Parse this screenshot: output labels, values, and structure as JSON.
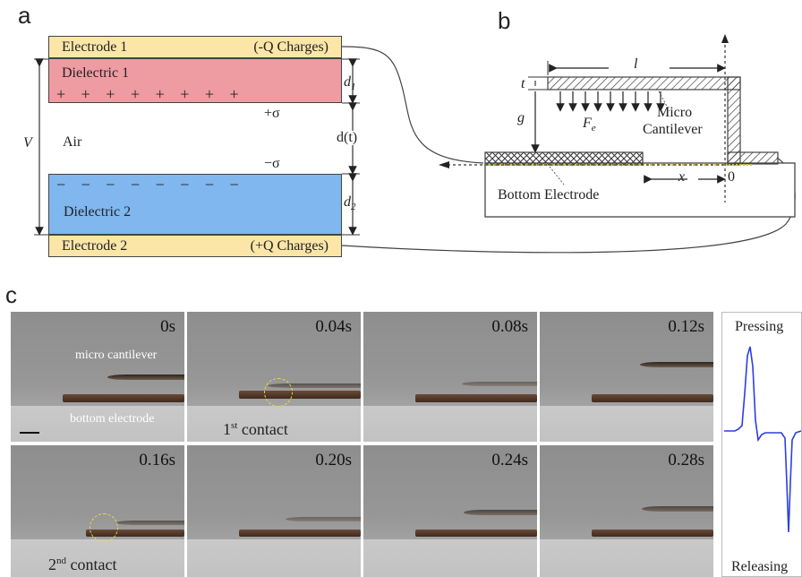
{
  "panel_a": {
    "letter": "a",
    "electrode1": "Electrode 1",
    "charge1": "(-Q Charges)",
    "dielectric1": "Dielectric 1",
    "plus_signs": "+   +   +   +   +   +   +   +",
    "sigma_plus": "+σ",
    "air": "Air",
    "V": "V",
    "sigma_minus": "−σ",
    "minus_signs": "−   −   −   −   −   −   −   −",
    "dielectric2": "Dielectric 2",
    "electrode2": "Electrode 2",
    "charge2": "(+Q Charges)",
    "d1": "d",
    "d1_sub": "1",
    "dt": "d(t)",
    "d2": "d",
    "d2_sub": "2"
  },
  "panel_b": {
    "letter": "b",
    "l": "l",
    "t": "t",
    "g": "g",
    "Fe": "F",
    "Fe_sub": "e",
    "micro": "Micro",
    "cantilever": "Cantilever",
    "bottom_electrode": "Bottom Electrode",
    "x": "x",
    "zero": "0"
  },
  "panel_c": {
    "letter": "c",
    "frames": [
      {
        "time": "0s"
      },
      {
        "time": "0.04s"
      },
      {
        "time": "0.08s"
      },
      {
        "time": "0.12s"
      },
      {
        "time": "0.16s"
      },
      {
        "time": "0.20s"
      },
      {
        "time": "0.24s"
      },
      {
        "time": "0.28s"
      }
    ],
    "micro_cantilever": "micro cantilever",
    "bottom_electrode": "bottom electrode",
    "first_contact": "1",
    "first_sup": "st",
    "contact": "contact",
    "second_contact": "2",
    "second_sup": "nd",
    "pressing": "Pressing",
    "releasing": "Releasing",
    "circle_color": "#e8d84a",
    "signal_color": "#2b3fe0"
  }
}
